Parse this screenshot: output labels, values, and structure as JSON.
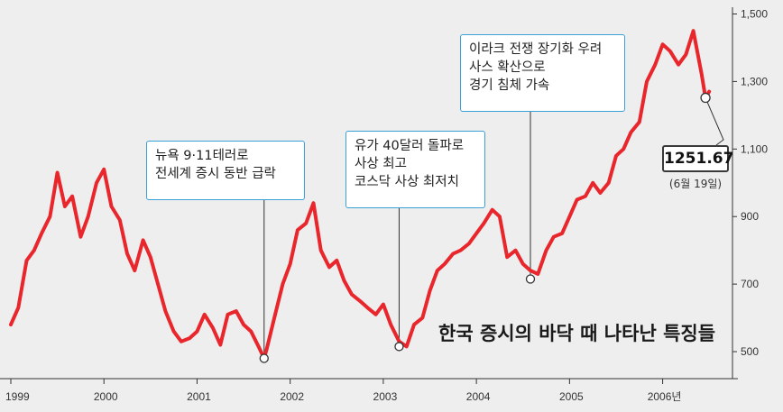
{
  "chart_data": {
    "type": "line",
    "title": "",
    "xlabel": "",
    "ylabel": "",
    "x_range": [
      1999.0,
      2006.75
    ],
    "ylim": [
      420,
      1520
    ],
    "x_ticks": [
      {
        "x": 1999,
        "label": "1999"
      },
      {
        "x": 2000,
        "label": "2000"
      },
      {
        "x": 2001,
        "label": "2001"
      },
      {
        "x": 2002,
        "label": "2002"
      },
      {
        "x": 2003,
        "label": "2003"
      },
      {
        "x": 2004,
        "label": "2004"
      },
      {
        "x": 2005,
        "label": "2005"
      },
      {
        "x": 2006,
        "label": "2006년"
      }
    ],
    "y_ticks": [
      {
        "y": 500,
        "label": "500"
      },
      {
        "y": 700,
        "label": "700"
      },
      {
        "y": 900,
        "label": "900"
      },
      {
        "y": 1100,
        "label": "1,100"
      },
      {
        "y": 1300,
        "label": "1,300"
      },
      {
        "y": 1500,
        "label": "1,500"
      }
    ],
    "line_color": "#e8262b",
    "grid": false,
    "series": [
      {
        "x": [
          1999.0,
          1999.08,
          1999.17,
          1999.25,
          1999.33,
          1999.42,
          1999.5,
          1999.58,
          1999.66,
          1999.75,
          1999.83,
          1999.92,
          2000.0,
          2000.08,
          2000.17,
          2000.25,
          2000.33,
          2000.42,
          2000.5,
          2000.58,
          2000.66,
          2000.75,
          2000.83,
          2000.92,
          2001.0,
          2001.08,
          2001.17,
          2001.25,
          2001.33,
          2001.42,
          2001.5,
          2001.58,
          2001.66,
          2001.72,
          2001.75,
          2001.83,
          2001.92,
          2002.0,
          2002.08,
          2002.17,
          2002.25,
          2002.33,
          2002.42,
          2002.5,
          2002.58,
          2002.66,
          2002.75,
          2002.83,
          2002.92,
          2003.0,
          2003.08,
          2003.17,
          2003.25,
          2003.33,
          2003.42,
          2003.5,
          2003.58,
          2003.66,
          2003.75,
          2003.83,
          2003.92,
          2004.0,
          2004.08,
          2004.17,
          2004.25,
          2004.33,
          2004.42,
          2004.5,
          2004.58,
          2004.66,
          2004.75,
          2004.83,
          2004.92,
          2005.0,
          2005.08,
          2005.17,
          2005.25,
          2005.33,
          2005.42,
          2005.5,
          2005.58,
          2005.66,
          2005.75,
          2005.83,
          2005.92,
          2006.0,
          2006.08,
          2006.17,
          2006.25,
          2006.33,
          2006.42,
          2006.46,
          2006.5
        ],
        "y": [
          580,
          630,
          770,
          800,
          850,
          900,
          1030,
          930,
          960,
          840,
          900,
          1000,
          1040,
          930,
          890,
          790,
          740,
          830,
          780,
          700,
          620,
          560,
          530,
          540,
          560,
          610,
          570,
          520,
          610,
          620,
          580,
          560,
          515,
          480,
          510,
          600,
          700,
          760,
          860,
          880,
          940,
          800,
          750,
          770,
          710,
          670,
          650,
          630,
          610,
          640,
          580,
          530,
          515,
          580,
          600,
          680,
          740,
          760,
          790,
          800,
          820,
          850,
          880,
          920,
          900,
          780,
          800,
          760,
          740,
          730,
          800,
          840,
          850,
          900,
          950,
          960,
          1000,
          970,
          1000,
          1080,
          1100,
          1150,
          1180,
          1300,
          1350,
          1410,
          1390,
          1350,
          1380,
          1450,
          1320,
          1251.67,
          1270
        ]
      }
    ],
    "annotations": [
      {
        "x": 2001.72,
        "y": 480,
        "lines": [
          "뉴욕  9·11테러로",
          "전세계 증시 동반 급락"
        ]
      },
      {
        "x": 2003.17,
        "y": 515,
        "lines": [
          "유가 40달러 돌파로",
          "사상 최고",
          "코스닥 사상 최저치"
        ]
      },
      {
        "x": 2004.58,
        "y": 715,
        "lines": [
          "이라크 전쟁 장기화 우려",
          "사스 확산으로",
          "경기 침체 가속"
        ]
      }
    ],
    "highlight": {
      "x": 2006.46,
      "y": 1251.67,
      "value_label": "1251.67",
      "date_label": "(6월 19일)"
    },
    "caption": "한국 증시의 바닥 때 나타난 특징들"
  }
}
